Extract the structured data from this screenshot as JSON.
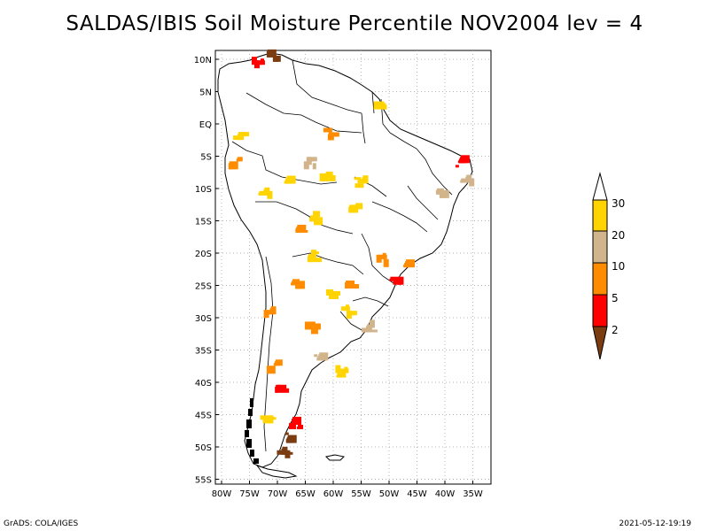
{
  "title": "SALDAS/IBIS Soil Moisture Percentile NOV2004 lev = 4",
  "footer": {
    "left": "GrADS: COLA/IGES",
    "right": "2021-05-12-19:19"
  },
  "map": {
    "region": "South America",
    "projection": "lat-lon",
    "lon_range": [
      -81,
      -32
    ],
    "lat_range": [
      -56,
      12
    ],
    "grid": "dotted",
    "lat_ticks": [
      {
        "value": 10,
        "label": "10N"
      },
      {
        "value": 5,
        "label": "5N"
      },
      {
        "value": 0,
        "label": "EQ"
      },
      {
        "value": -5,
        "label": "5S"
      },
      {
        "value": -10,
        "label": "10S"
      },
      {
        "value": -15,
        "label": "15S"
      },
      {
        "value": -20,
        "label": "20S"
      },
      {
        "value": -25,
        "label": "25S"
      },
      {
        "value": -30,
        "label": "30S"
      },
      {
        "value": -35,
        "label": "35S"
      },
      {
        "value": -40,
        "label": "40S"
      },
      {
        "value": -45,
        "label": "45S"
      },
      {
        "value": -50,
        "label": "50S"
      },
      {
        "value": -55,
        "label": "55S"
      }
    ],
    "lon_ticks": [
      {
        "value": -80,
        "label": "80W"
      },
      {
        "value": -75,
        "label": "75W"
      },
      {
        "value": -70,
        "label": "70W"
      },
      {
        "value": -65,
        "label": "65W"
      },
      {
        "value": -60,
        "label": "60W"
      },
      {
        "value": -55,
        "label": "55W"
      },
      {
        "value": -50,
        "label": "50W"
      },
      {
        "value": -45,
        "label": "45W"
      },
      {
        "value": -40,
        "label": "40W"
      },
      {
        "value": -35,
        "label": "35W"
      }
    ],
    "colors": {
      "coast": "#000000",
      "grid": "#9a9a9a"
    }
  },
  "legend": {
    "labels": [
      "2",
      "5",
      "10",
      "20",
      "30"
    ],
    "colors": {
      "below_2": "#7a3c10",
      "2_to_5": "#ff0000",
      "5_to_10": "#ff8c00",
      "10_to_20": "#d2b48c",
      "20_to_30": "#ffd400",
      "above_30": "#ffffff"
    }
  },
  "dry_areas": [
    {
      "lon": -67.5,
      "lat": -48.5,
      "class": "below_2"
    },
    {
      "lon": -68.5,
      "lat": -51.0,
      "class": "below_2"
    },
    {
      "lon": -66.5,
      "lat": -46.5,
      "class": "2_to_5"
    },
    {
      "lon": -69.5,
      "lat": -41.0,
      "class": "2_to_5"
    },
    {
      "lon": -70.5,
      "lat": -37.5,
      "class": "5_to_10"
    },
    {
      "lon": -71.5,
      "lat": -29.0,
      "class": "5_to_10"
    },
    {
      "lon": -63.5,
      "lat": -31.5,
      "class": "5_to_10"
    },
    {
      "lon": -48.5,
      "lat": -24.0,
      "class": "2_to_5"
    },
    {
      "lon": -46.5,
      "lat": -22.0,
      "class": "5_to_10"
    },
    {
      "lon": -53.5,
      "lat": -31.5,
      "class": "10_to_20"
    },
    {
      "lon": -60.0,
      "lat": -26.5,
      "class": "20_to_30"
    },
    {
      "lon": -57.0,
      "lat": -29.0,
      "class": "20_to_30"
    },
    {
      "lon": -56.5,
      "lat": -25.0,
      "class": "5_to_10"
    },
    {
      "lon": -64.0,
      "lat": -6.0,
      "class": "10_to_20"
    },
    {
      "lon": -61.0,
      "lat": -8.0,
      "class": "20_to_30"
    },
    {
      "lon": -55.0,
      "lat": -9.0,
      "class": "20_to_30"
    },
    {
      "lon": -68.0,
      "lat": -8.5,
      "class": "20_to_30"
    },
    {
      "lon": -72.0,
      "lat": -11.0,
      "class": "20_to_30"
    },
    {
      "lon": -63.0,
      "lat": -14.5,
      "class": "20_to_30"
    },
    {
      "lon": -76.5,
      "lat": -2.0,
      "class": "20_to_30"
    },
    {
      "lon": -77.5,
      "lat": -6.0,
      "class": "5_to_10"
    },
    {
      "lon": -73.5,
      "lat": 9.5,
      "class": "2_to_5"
    },
    {
      "lon": -70.5,
      "lat": 10.5,
      "class": "below_2"
    },
    {
      "lon": -51.5,
      "lat": 3.0,
      "class": "20_to_30"
    },
    {
      "lon": -37.0,
      "lat": -6.0,
      "class": "2_to_5"
    },
    {
      "lon": -36.0,
      "lat": -8.5,
      "class": "10_to_20"
    },
    {
      "lon": -40.5,
      "lat": -11.0,
      "class": "10_to_20"
    },
    {
      "lon": -60.5,
      "lat": -1.5,
      "class": "5_to_10"
    },
    {
      "lon": -65.5,
      "lat": -16.5,
      "class": "5_to_10"
    },
    {
      "lon": -63.5,
      "lat": -20.5,
      "class": "20_to_30"
    },
    {
      "lon": -56.0,
      "lat": -13.0,
      "class": "20_to_30"
    },
    {
      "lon": -58.5,
      "lat": -38.5,
      "class": "20_to_30"
    },
    {
      "lon": -62.5,
      "lat": -36.0,
      "class": "10_to_20"
    },
    {
      "lon": -51.0,
      "lat": -21.0,
      "class": "5_to_10"
    },
    {
      "lon": -66.5,
      "lat": -24.5,
      "class": "5_to_10"
    },
    {
      "lon": -71.5,
      "lat": -46.0,
      "class": "20_to_30"
    }
  ]
}
